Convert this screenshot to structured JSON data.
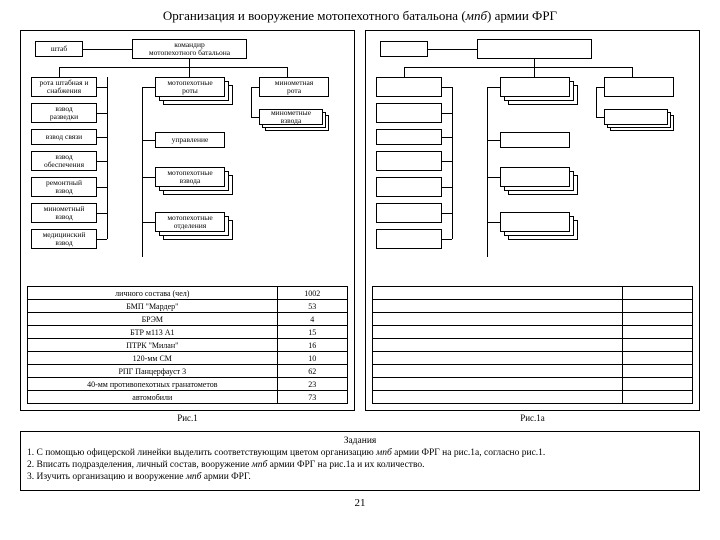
{
  "title_pre": "Организация и вооружение мотопехотного батальона (",
  "title_ital": "мпб",
  "title_post": ") армии ФРГ",
  "org": {
    "hq": "штаб",
    "commander": "командир\nмотопехотного батальона",
    "left_col": [
      "рота штабная и\nснабжения",
      "взвод\nразведки",
      "взвод связи",
      "взвод\nобеспечения",
      "ремонтный\nвзвод",
      "минометный\nвзвод",
      "медицинский\nвзвод"
    ],
    "mid": [
      "мотопехотные\nроты",
      "управление",
      "мотопехотные\nвзвода",
      "мотопехотные\nотделения"
    ],
    "right": [
      "минометная\nрота",
      "минометные\nвзвода"
    ]
  },
  "table_rows": [
    [
      "личного состава (чел)",
      "1002"
    ],
    [
      "БМП \"Мардер\"",
      "53"
    ],
    [
      "БРЭМ",
      "4"
    ],
    [
      "БТР м113 А1",
      "15"
    ],
    [
      "ПТРК \"Милан\"",
      "16"
    ],
    [
      "120-мм СМ",
      "10"
    ],
    [
      "РПГ Панцерфауст 3",
      "62"
    ],
    [
      "40-мм противопехотных гранатометов",
      "23"
    ],
    [
      "автомобили",
      "73"
    ]
  ],
  "fig1": "Рис.1",
  "fig1a": "Рис.1а",
  "tasks": {
    "heading": "Задания",
    "l1_pre": "1. С помощью офицерской линейки выделить соответствующим цветом организацию ",
    "l1_ital": "мпб",
    "l1_post": " армии ФРГ на рис.1а, согласно рис.1.",
    "l2_pre": "2. Вписать подразделения, личный состав, вооружение ",
    "l2_ital": "мпб",
    "l2_post": " армии ФРГ на рис.1а и их количество.",
    "l3_pre": "3. Изучить организацию и вооружение ",
    "l3_ital": "мпб",
    "l3_post": " армии ФРГ."
  },
  "page_number": "21",
  "colors": {
    "border": "#000000",
    "bg": "#ffffff"
  }
}
